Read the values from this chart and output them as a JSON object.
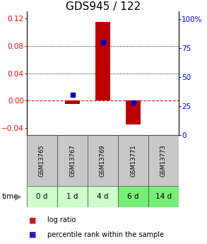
{
  "title": "GDS945 / 122",
  "samples": [
    "GSM13765",
    "GSM13767",
    "GSM13769",
    "GSM13771",
    "GSM13773"
  ],
  "time_labels": [
    "0 d",
    "1 d",
    "4 d",
    "6 d",
    "14 d"
  ],
  "log_ratio": [
    0.0,
    -0.005,
    0.115,
    -0.035,
    0.0
  ],
  "percentile_rank": [
    null,
    35,
    80,
    28,
    null
  ],
  "ylim_left": [
    -0.05,
    0.13
  ],
  "ylim_right": [
    0,
    107
  ],
  "yticks_left": [
    -0.04,
    0.0,
    0.04,
    0.08,
    0.12
  ],
  "yticks_right": [
    0,
    25,
    50,
    75,
    100
  ],
  "bar_color": "#bb0000",
  "scatter_color": "#0000bb",
  "zero_line_color": "#cc2222",
  "dotted_line_color": "#000000",
  "bg_plot": "#ffffff",
  "bg_gsm": "#c8c8c8",
  "bg_time_light": "#ccffcc",
  "bg_time_dark": "#77ee77",
  "legend_bar_color": "#bb2222",
  "legend_dot_color": "#2222bb",
  "title_fontsize": 11,
  "tick_fontsize": 7.5,
  "bar_width": 0.5,
  "gsm_fontsize": 6.0,
  "time_fontsize": 7.5,
  "legend_fontsize": 7.0
}
